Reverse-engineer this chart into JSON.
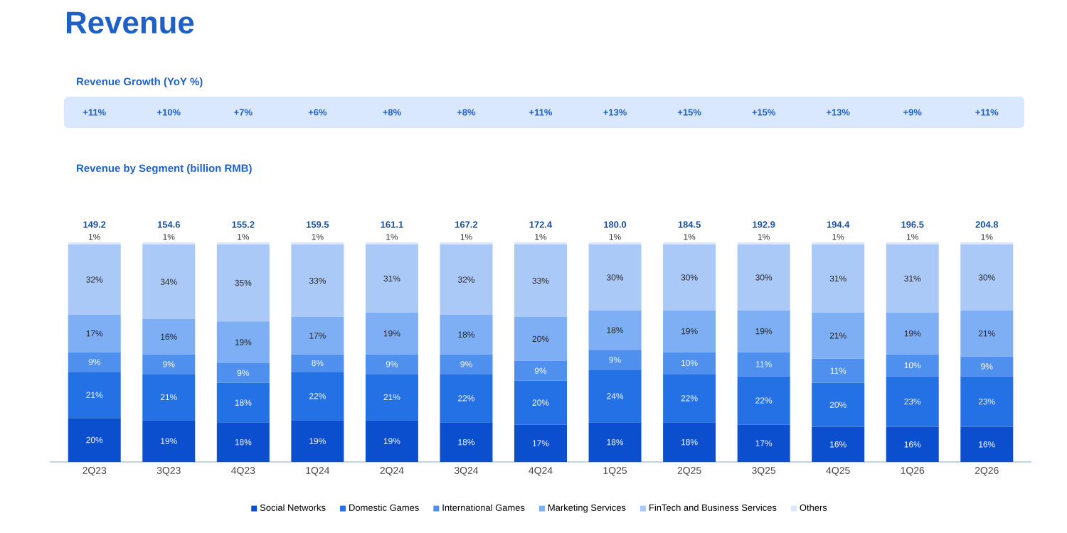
{
  "chart_data": {
    "type": "bar",
    "stacked": true,
    "title": "Revenue",
    "subtitle": "Revenue Growth (YoY %)",
    "categories": [
      "2Q23",
      "3Q23",
      "4Q23",
      "1Q24",
      "2Q24",
      "3Q24",
      "4Q24",
      "1Q25",
      "2Q25",
      "3Q25",
      "4Q25",
      "1Q26",
      "2Q26"
    ],
    "series": [
      {
        "name": "Social Networks",
        "color": "#0b4fcf",
        "values": [
          20,
          19,
          18,
          19,
          19,
          18,
          17,
          18,
          18,
          17,
          16,
          16,
          16
        ],
        "value_labels": [
          "20%",
          "19%",
          "18%",
          "19%",
          "19%",
          "18%",
          "17%",
          "18%",
          "18%",
          "17%",
          "16%",
          "16%",
          "16%"
        ]
      },
      {
        "name": "Domestic Games",
        "color": "#2471e6",
        "values": [
          21,
          21,
          18,
          22,
          21,
          22,
          20,
          24,
          22,
          22,
          20,
          23,
          23
        ],
        "value_labels": [
          "21%",
          "21%",
          "18%",
          "22%",
          "21%",
          "22%",
          "20%",
          "24%",
          "22%",
          "22%",
          "20%",
          "23%",
          "23%"
        ]
      },
      {
        "name": "International Games",
        "color": "#4f90ee",
        "values": [
          9,
          9,
          9,
          8,
          9,
          9,
          9,
          9,
          10,
          11,
          11,
          10,
          9
        ],
        "value_labels": [
          "9%",
          "9%",
          "9%",
          "8%",
          "9%",
          "9%",
          "9%",
          "9%",
          "10%",
          "11%",
          "11%",
          "10%",
          "9%"
        ]
      },
      {
        "name": "Marketing Services",
        "color": "#7eaef4",
        "values": [
          17,
          16,
          19,
          17,
          19,
          18,
          20,
          18,
          19,
          19,
          21,
          19,
          21
        ],
        "value_labels": [
          "17%",
          "16%",
          "19%",
          "17%",
          "19%",
          "18%",
          "20%",
          "18%",
          "19%",
          "19%",
          "21%",
          "19%",
          "21%"
        ]
      },
      {
        "name": "FinTech and Business Services",
        "color": "#abc9f7",
        "values": [
          32,
          34,
          35,
          33,
          31,
          32,
          33,
          30,
          30,
          30,
          31,
          31,
          30
        ],
        "value_labels": [
          "32%",
          "34%",
          "35%",
          "33%",
          "31%",
          "32%",
          "33%",
          "30%",
          "30%",
          "30%",
          "31%",
          "31%",
          "30%"
        ]
      },
      {
        "name": "Others",
        "color": "#dbe7fb",
        "values": [
          1,
          1,
          1,
          1,
          1,
          1,
          1,
          1,
          1,
          1,
          1,
          1,
          1
        ],
        "value_labels": [
          "1%",
          "1%",
          "1%",
          "1%",
          "1%",
          "1%",
          "1%",
          "1%",
          "1%",
          "1%",
          "1%",
          "1%",
          "1%"
        ]
      }
    ],
    "annotations": [
      "Revenue by Segment (billion RMB)",
      "+11%",
      "+10%",
      "+7%",
      "+6%",
      "+8%",
      "+8%",
      "+11%",
      "+13%",
      "+15%",
      "+15%",
      "+13%",
      "+9%",
      "+11%",
      "149.2",
      "154.6",
      "155.2",
      "159.5",
      "161.1",
      "167.2",
      "172.4",
      "180.0",
      "184.5",
      "192.9",
      "194.4",
      "196.5",
      "204.8"
    ],
    "tick_labels": "x",
    "legend": "bottom"
  }
}
